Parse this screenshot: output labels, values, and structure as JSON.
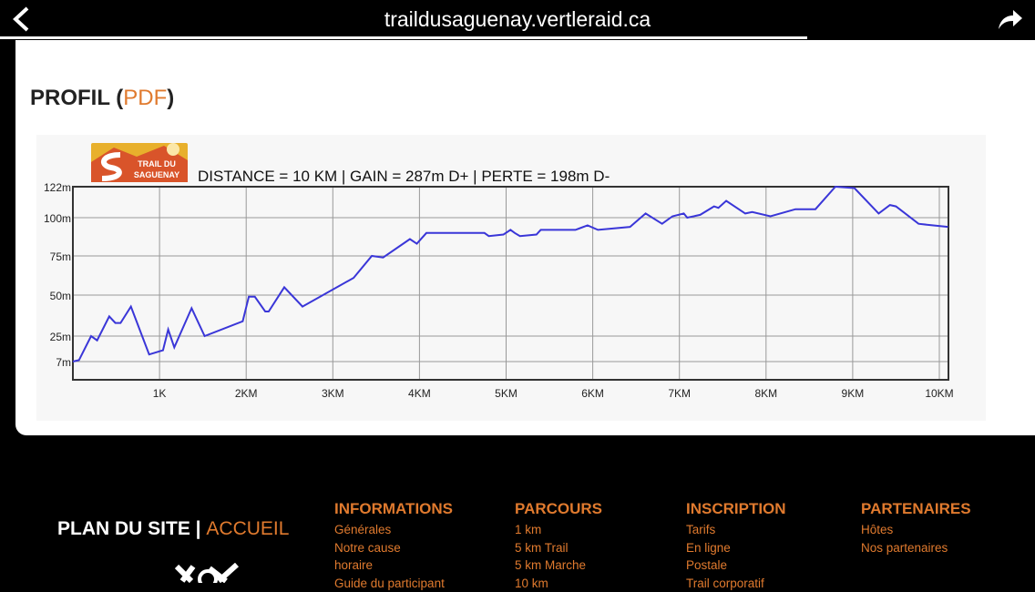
{
  "browser": {
    "url": "traildusaguenay.vertleraid.ca",
    "progress": 0.78
  },
  "page": {
    "title": "PROFIL",
    "open_paren": " (",
    "pdf_link": "PDF",
    "close_paren": ")"
  },
  "chart_data": {
    "type": "line",
    "title": "DISTANCE = 10 KM | GAIN = 287m D+ | PERTE = 198m D-",
    "logo_text": "TRAIL DU SAGUENAY",
    "xlabel": "",
    "ylabel": "",
    "x_ticks": [
      {
        "v": 1,
        "label": "1K"
      },
      {
        "v": 2,
        "label": "2KM"
      },
      {
        "v": 3,
        "label": "3KM"
      },
      {
        "v": 4,
        "label": "4KM"
      },
      {
        "v": 5,
        "label": "5KM"
      },
      {
        "v": 6,
        "label": "6KM"
      },
      {
        "v": 7,
        "label": "7KM"
      },
      {
        "v": 8,
        "label": "8KM"
      },
      {
        "v": 9,
        "label": "9KM"
      },
      {
        "v": 10,
        "label": "10KM"
      }
    ],
    "y_ticks": [
      {
        "v": 122,
        "label": "122m"
      },
      {
        "v": 100,
        "label": "100m"
      },
      {
        "v": 75,
        "label": "75m"
      },
      {
        "v": 50,
        "label": "50m"
      },
      {
        "v": 25,
        "label": "25m"
      },
      {
        "v": 7,
        "label": "7m"
      }
    ],
    "xlim": [
      0,
      10.1
    ],
    "ylim": [
      -5,
      122
    ],
    "grid": true,
    "series": [
      {
        "name": "elevation",
        "color": "#3a36d8",
        "x": [
          0,
          0.07,
          0.21,
          0.28,
          0.42,
          0.49,
          0.55,
          0.67,
          0.88,
          1.04,
          1.1,
          1.17,
          1.37,
          1.52,
          1.96,
          2.03,
          2.1,
          2.22,
          2.26,
          2.44,
          2.65,
          3.24,
          3.45,
          3.58,
          3.89,
          3.97,
          4.08,
          4.75,
          4.8,
          4.97,
          5.05,
          5.1,
          5.16,
          5.35,
          5.4,
          5.8,
          5.94,
          6.06,
          6.43,
          6.61,
          6.8,
          6.92,
          7.05,
          7.09,
          7.24,
          7.4,
          7.45,
          7.54,
          7.76,
          7.84,
          8.05,
          8.34,
          8.57,
          8.8,
          9.02,
          9.3,
          9.43,
          9.5,
          9.76,
          9.92,
          10.1
        ],
        "y": [
          7,
          8,
          25,
          22,
          37,
          33,
          33,
          43,
          12,
          15,
          29,
          17,
          42,
          25,
          34,
          49,
          49,
          40,
          40,
          55,
          43,
          61,
          75,
          74,
          86,
          83,
          90,
          90,
          88,
          89,
          92,
          90,
          88,
          89,
          92,
          92,
          95,
          92,
          94,
          103,
          96,
          101,
          103,
          100,
          102,
          108,
          107,
          112,
          103,
          104,
          101,
          106,
          106,
          122,
          121,
          103,
          109,
          108,
          96,
          95,
          94
        ]
      }
    ]
  },
  "footer": {
    "site_map": "PLAN DU SITE",
    "sep": " | ",
    "home": "ACCUEIL",
    "columns": [
      {
        "heading": "INFORMATIONS",
        "items": [
          "Générales",
          "Notre cause",
          "horaire",
          "Guide du participant"
        ]
      },
      {
        "heading": "PARCOURS",
        "items": [
          "1 km",
          "5 km Trail",
          "5 km Marche",
          "10 km"
        ]
      },
      {
        "heading": "INSCRIPTION",
        "items": [
          "Tarifs",
          "En ligne",
          "Postale",
          "Trail corporatif"
        ]
      },
      {
        "heading": "PARTENAIRES",
        "items": [
          "Hôtes",
          "Nos partenaires"
        ]
      }
    ]
  }
}
